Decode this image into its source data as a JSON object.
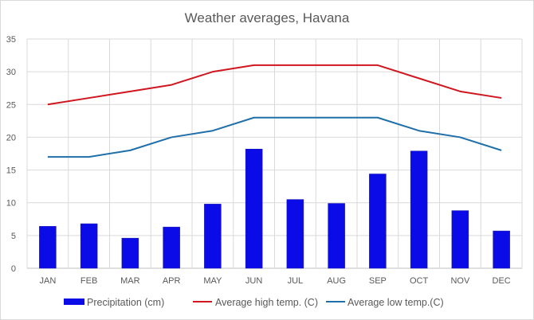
{
  "chart_data": {
    "type": "bar+line",
    "title": "Weather averages, Havana",
    "xlabel": "",
    "ylabel": "",
    "ylim": [
      0,
      35
    ],
    "yticks": [
      0,
      5,
      10,
      15,
      20,
      25,
      30,
      35
    ],
    "grid": true,
    "legend_position": "bottom",
    "categories": [
      "JAN",
      "FEB",
      "MAR",
      "APR",
      "MAY",
      "JUN",
      "JUL",
      "AUG",
      "SEP",
      "OCT",
      "NOV",
      "DEC"
    ],
    "series": [
      {
        "name": "Precipitation (cm)",
        "type": "bar",
        "color": "#0b0be8",
        "values": [
          6.4,
          6.8,
          4.6,
          6.3,
          9.8,
          18.2,
          10.5,
          9.9,
          14.4,
          17.9,
          8.8,
          5.7
        ]
      },
      {
        "name": "Average high temp. (C)",
        "type": "line",
        "color": "#d0161e",
        "values": [
          25,
          26,
          27,
          28,
          30,
          31,
          31,
          31,
          31,
          29,
          27,
          26
        ]
      },
      {
        "name": "Average low temp.(C)",
        "type": "line",
        "color": "#1f6fa8",
        "values": [
          17,
          17,
          18,
          20,
          21,
          23,
          23,
          23,
          23,
          21,
          20,
          18
        ]
      }
    ]
  }
}
